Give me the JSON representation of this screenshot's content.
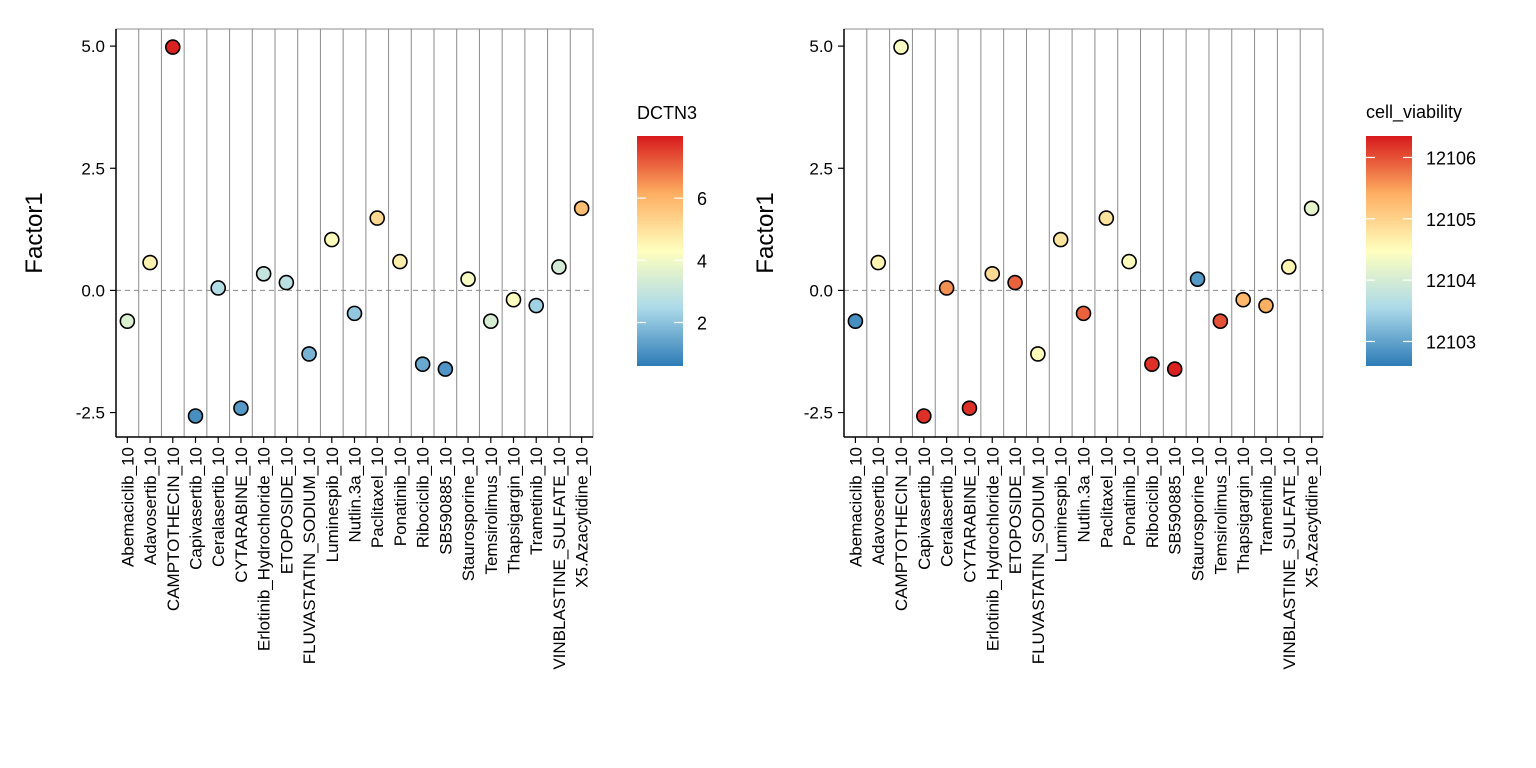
{
  "chart_data": [
    {
      "type": "scatter",
      "ylabel": "Factor1",
      "xlabel": "",
      "ylim": [
        -3.0,
        5.35
      ],
      "yticks": [
        -2.5,
        0.0,
        2.5,
        5.0
      ],
      "ytick_labels": [
        "-2.5",
        "0.0",
        "2.5",
        "5.0"
      ],
      "reference_line": 0.0,
      "vertical_grid": true,
      "categories": [
        "Abemaciclib_10",
        "Adavosertib_10",
        "CAMPTOTHECIN_10",
        "Capivasertib_10",
        "Ceralasertib_10",
        "CYTARABINE_10",
        "Erlotinib_Hydrochloride_10",
        "ETOPOSIDE_10",
        "FLUVASTATIN_SODIUM_10",
        "Luminespib_10",
        "Nutlin.3a_10",
        "Paclitaxel_10",
        "Ponatinib_10",
        "Ribociclib_10",
        "SB590885_10",
        "Staurosporine_10",
        "Temsirolimus_10",
        "Thapsigargin_10",
        "Trametinib_10",
        "VINBLASTINE_SULFATE_10",
        "X5.Azacytidine_10"
      ],
      "points": [
        {
          "x": "Abemaciclib_10",
          "y": -0.63,
          "color_value": 3.5
        },
        {
          "x": "Adavosertib_10",
          "y": 0.57,
          "color_value": 4.6
        },
        {
          "x": "CAMPTOTHECIN_10",
          "y": 4.98,
          "color_value": 7.9
        },
        {
          "x": "Capivasertib_10",
          "y": -2.57,
          "color_value": 1.0
        },
        {
          "x": "Ceralasertib_10",
          "y": 0.05,
          "color_value": 2.6
        },
        {
          "x": "CYTARABINE_10",
          "y": -2.41,
          "color_value": 1.2
        },
        {
          "x": "Erlotinib_Hydrochloride_10",
          "y": 0.34,
          "color_value": 3.0
        },
        {
          "x": "ETOPOSIDE_10",
          "y": 0.16,
          "color_value": 2.8
        },
        {
          "x": "FLUVASTATIN_SODIUM_10",
          "y": -1.3,
          "color_value": 1.7
        },
        {
          "x": "Luminespib_10",
          "y": 1.04,
          "color_value": 4.4
        },
        {
          "x": "Nutlin.3a_10",
          "y": -0.47,
          "color_value": 2.1
        },
        {
          "x": "Paclitaxel_10",
          "y": 1.48,
          "color_value": 5.2
        },
        {
          "x": "Ponatinib_10",
          "y": 0.59,
          "color_value": 4.7
        },
        {
          "x": "Ribociclib_10",
          "y": -1.51,
          "color_value": 1.5
        },
        {
          "x": "SB590885_10",
          "y": -1.61,
          "color_value": 1.1
        },
        {
          "x": "Staurosporine_10",
          "y": 0.23,
          "color_value": 4.1
        },
        {
          "x": "Temsirolimus_10",
          "y": -0.63,
          "color_value": 3.4
        },
        {
          "x": "Thapsigargin_10",
          "y": -0.19,
          "color_value": 4.3
        },
        {
          "x": "Trametinib_10",
          "y": -0.31,
          "color_value": 2.3
        },
        {
          "x": "VINBLASTINE_SULFATE_10",
          "y": 0.48,
          "color_value": 3.3
        },
        {
          "x": "X5.Azacytidine_10",
          "y": 1.68,
          "color_value": 5.8
        }
      ],
      "legend": {
        "title": "DCTN3",
        "position": "right",
        "range": [
          0.6,
          8.0
        ],
        "breaks": [
          2,
          4,
          6
        ],
        "break_labels": [
          "2",
          "4",
          "6"
        ]
      },
      "colors": [
        "#2c7bb6",
        "#abd9e9",
        "#ffffbf",
        "#fdae61",
        "#d7191c"
      ]
    },
    {
      "type": "scatter",
      "ylabel": "Factor1",
      "xlabel": "",
      "ylim": [
        -3.0,
        5.35
      ],
      "yticks": [
        -2.5,
        0.0,
        2.5,
        5.0
      ],
      "ytick_labels": [
        "-2.5",
        "0.0",
        "2.5",
        "5.0"
      ],
      "reference_line": 0.0,
      "vertical_grid": true,
      "categories": [
        "Abemaciclib_10",
        "Adavosertib_10",
        "CAMPTOTHECIN_10",
        "Capivasertib_10",
        "Ceralasertib_10",
        "CYTARABINE_10",
        "Erlotinib_Hydrochloride_10",
        "ETOPOSIDE_10",
        "FLUVASTATIN_SODIUM_10",
        "Luminespib_10",
        "Nutlin.3a_10",
        "Paclitaxel_10",
        "Ponatinib_10",
        "Ribociclib_10",
        "SB590885_10",
        "Staurosporine_10",
        "Temsirolimus_10",
        "Thapsigargin_10",
        "Trametinib_10",
        "VINBLASTINE_SULFATE_10",
        "X5.Azacytidine_10"
      ],
      "points": [
        {
          "x": "Abemaciclib_10",
          "y": -0.63,
          "color_value": 12102.8
        },
        {
          "x": "Adavosertib_10",
          "y": 0.57,
          "color_value": 12104.6
        },
        {
          "x": "CAMPTOTHECIN_10",
          "y": 4.98,
          "color_value": 12104.4
        },
        {
          "x": "Capivasertib_10",
          "y": -2.57,
          "color_value": 12106.2
        },
        {
          "x": "Ceralasertib_10",
          "y": 0.05,
          "color_value": 12105.6
        },
        {
          "x": "CYTARABINE_10",
          "y": -2.41,
          "color_value": 12106.2
        },
        {
          "x": "Erlotinib_Hydrochloride_10",
          "y": 0.34,
          "color_value": 12104.9
        },
        {
          "x": "ETOPOSIDE_10",
          "y": 0.16,
          "color_value": 12105.9
        },
        {
          "x": "FLUVASTATIN_SODIUM_10",
          "y": -1.3,
          "color_value": 12104.5
        },
        {
          "x": "Luminespib_10",
          "y": 1.04,
          "color_value": 12104.8
        },
        {
          "x": "Nutlin.3a_10",
          "y": -0.47,
          "color_value": 12105.9
        },
        {
          "x": "Paclitaxel_10",
          "y": 1.48,
          "color_value": 12104.8
        },
        {
          "x": "Ponatinib_10",
          "y": 0.59,
          "color_value": 12104.5
        },
        {
          "x": "Ribociclib_10",
          "y": -1.51,
          "color_value": 12106.2
        },
        {
          "x": "SB590885_10",
          "y": -1.61,
          "color_value": 12106.3
        },
        {
          "x": "Staurosporine_10",
          "y": 0.23,
          "color_value": 12102.9
        },
        {
          "x": "Temsirolimus_10",
          "y": -0.63,
          "color_value": 12106.0
        },
        {
          "x": "Thapsigargin_10",
          "y": -0.19,
          "color_value": 12105.3
        },
        {
          "x": "Trametinib_10",
          "y": -0.31,
          "color_value": 12105.4
        },
        {
          "x": "VINBLASTINE_SULFATE_10",
          "y": 0.48,
          "color_value": 12104.6
        },
        {
          "x": "X5.Azacytidine_10",
          "y": 1.68,
          "color_value": 12104.2
        }
      ],
      "legend": {
        "title": "cell_viability",
        "position": "right",
        "range": [
          12102.6,
          12106.35
        ],
        "breaks": [
          12103,
          12104,
          12105,
          12106
        ],
        "break_labels": [
          "12103",
          "12104",
          "12105",
          "12106"
        ]
      },
      "colors": [
        "#2c7bb6",
        "#abd9e9",
        "#ffffbf",
        "#fdae61",
        "#d7191c"
      ]
    }
  ]
}
